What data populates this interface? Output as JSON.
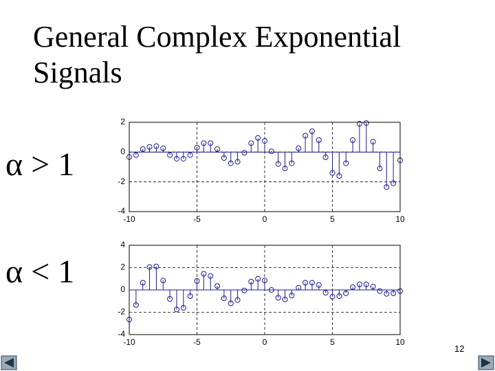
{
  "title": [
    "General Complex Exponential",
    "Signals"
  ],
  "labels": [
    "α > 1",
    "α < 1"
  ],
  "page_number": "12",
  "chart_data": [
    {
      "type": "stem",
      "color": "#1a1a90",
      "x": [
        -10,
        -9.5,
        -9,
        -8.5,
        -8,
        -7.5,
        -7,
        -6.5,
        -6,
        -5.5,
        -5,
        -4.5,
        -4,
        -3.5,
        -3,
        -2.5,
        -2,
        -1.5,
        -1,
        -0.5,
        0,
        0.5,
        1,
        1.5,
        2,
        2.5,
        3,
        3.5,
        4,
        4.5,
        5,
        5.5,
        6,
        6.5,
        7,
        7.5,
        8,
        8.5,
        9,
        9.5,
        10
      ],
      "values": [
        -0.33,
        -0.2,
        0.2,
        0.35,
        0.4,
        0.25,
        -0.2,
        -0.45,
        -0.45,
        -0.2,
        0.3,
        0.6,
        0.6,
        0.2,
        -0.4,
        -0.75,
        -0.65,
        -0.05,
        0.6,
        0.95,
        0.75,
        0.05,
        -0.8,
        -1.1,
        -0.75,
        0.25,
        1.1,
        1.4,
        0.8,
        -0.35,
        -1.4,
        -1.6,
        -0.75,
        0.8,
        1.9,
        1.95,
        0.7,
        -1.1,
        -2.35,
        -2.1,
        -0.55
      ],
      "xlim": [
        -10,
        10
      ],
      "xticks": [
        -10,
        -5,
        0,
        5,
        10
      ],
      "ylim": [
        -4,
        2
      ],
      "yticks": [
        2,
        0,
        -2,
        -4
      ],
      "grid": true
    },
    {
      "type": "stem",
      "color": "#1a1a90",
      "x": [
        -10,
        -9.5,
        -9,
        -8.5,
        -8,
        -7.5,
        -7,
        -6.5,
        -6,
        -5.5,
        -5,
        -4.5,
        -4,
        -3.5,
        -3,
        -2.5,
        -2,
        -1.5,
        -1,
        -0.5,
        0,
        0.5,
        1,
        1.5,
        2,
        2.5,
        3,
        3.5,
        4,
        4.5,
        5,
        5.5,
        6,
        6.5,
        7,
        7.5,
        8,
        8.5,
        9,
        9.5,
        10
      ],
      "values": [
        -2.65,
        -1.35,
        0.65,
        2.05,
        2.1,
        0.85,
        -0.8,
        -1.75,
        -1.6,
        -0.55,
        0.8,
        1.45,
        1.25,
        0.35,
        -0.75,
        -1.2,
        -0.9,
        -0.05,
        0.75,
        1.0,
        0.85,
        0.0,
        -0.7,
        -0.85,
        -0.5,
        0.2,
        0.65,
        0.65,
        0.45,
        -0.25,
        -0.6,
        -0.55,
        -0.3,
        0.25,
        0.5,
        0.5,
        0.3,
        -0.1,
        -0.35,
        -0.3,
        -0.1
      ],
      "xlim": [
        -10,
        10
      ],
      "xticks": [
        -10,
        -5,
        0,
        5,
        10
      ],
      "ylim": [
        -4,
        4
      ],
      "yticks": [
        4,
        2,
        0,
        -2,
        -4
      ],
      "grid": true
    }
  ]
}
